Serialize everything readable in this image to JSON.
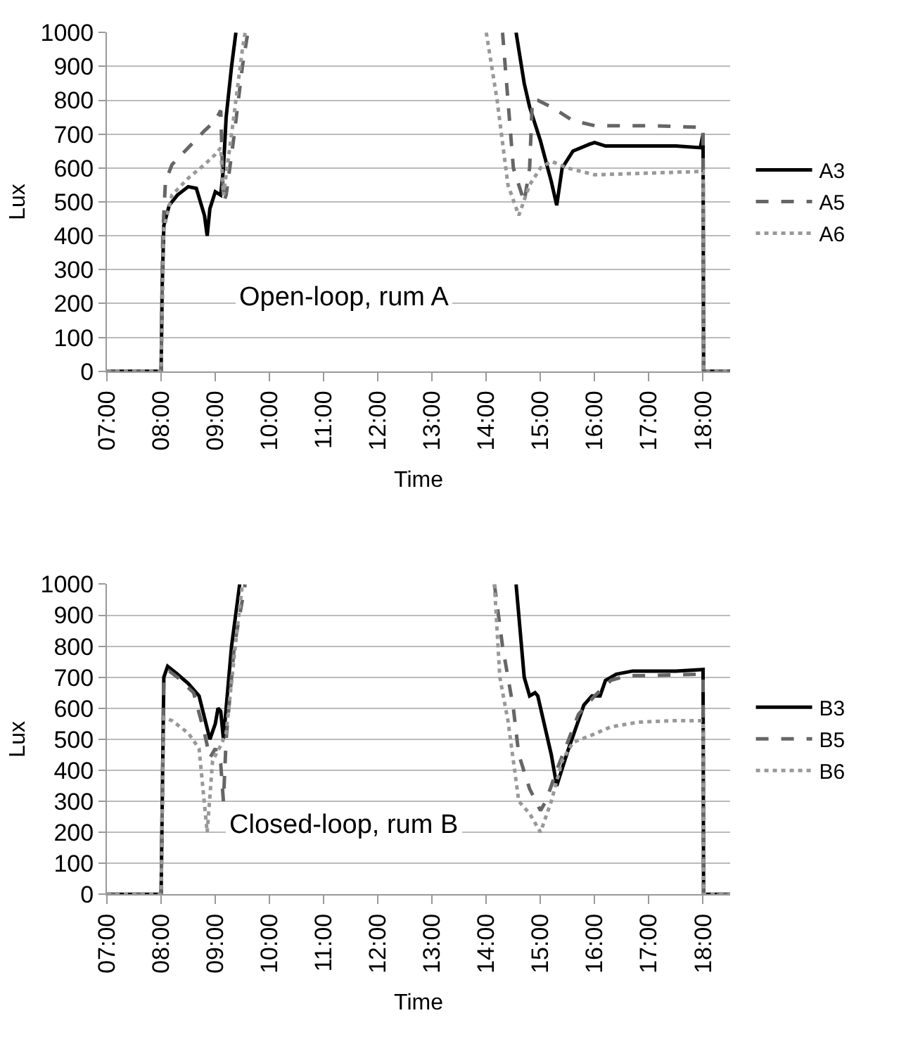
{
  "chart_data": [
    {
      "type": "line",
      "xlabel": "Time",
      "ylabel": "Lux",
      "annotations": [
        "Open-loop, rum A"
      ],
      "xlim": [
        7,
        18.5
      ],
      "ylim": [
        0,
        1000
      ],
      "xticks": [
        {
          "value": 7,
          "label": "07:00"
        },
        {
          "value": 8,
          "label": "08:00"
        },
        {
          "value": 9,
          "label": "09:00"
        },
        {
          "value": 10,
          "label": "10:00"
        },
        {
          "value": 11,
          "label": "11:00"
        },
        {
          "value": 12,
          "label": "12:00"
        },
        {
          "value": 13,
          "label": "13:00"
        },
        {
          "value": 14,
          "label": "14:00"
        },
        {
          "value": 15,
          "label": "15:00"
        },
        {
          "value": 16,
          "label": "16:00"
        },
        {
          "value": 17,
          "label": "17:00"
        },
        {
          "value": 18,
          "label": "18:00"
        }
      ],
      "yticks": [
        0,
        100,
        200,
        300,
        400,
        500,
        600,
        700,
        800,
        900,
        1000
      ],
      "grid": "y",
      "legend": "right",
      "marker": "none",
      "series": [
        {
          "name": "A3",
          "color": "#000000",
          "line_style": "solid",
          "x": [
            7,
            8,
            8.02,
            8.05,
            8.15,
            8.3,
            8.5,
            8.65,
            8.8,
            8.85,
            8.9,
            9.0,
            9.1,
            9.15,
            9.2,
            9.3,
            9.38,
            12,
            14.55,
            14.7,
            14.8,
            15.0,
            15.2,
            15.3,
            15.4,
            15.6,
            15.9,
            16.0,
            16.2,
            17.0,
            17.5,
            17.95,
            18.0,
            18.01,
            18.5
          ],
          "values": [
            0,
            0,
            250,
            430,
            490,
            520,
            545,
            540,
            460,
            400,
            480,
            530,
            520,
            600,
            750,
            900,
            1000,
            null,
            1000,
            850,
            780,
            680,
            560,
            490,
            600,
            650,
            670,
            675,
            665,
            665,
            665,
            660,
            700,
            0,
            0
          ]
        },
        {
          "name": "A5",
          "color": "#666666",
          "line_style": "dashed",
          "x": [
            7,
            8,
            8.03,
            8.08,
            8.2,
            8.5,
            8.8,
            9.0,
            9.1,
            9.15,
            9.2,
            9.35,
            9.5,
            9.6,
            12,
            14.3,
            14.4,
            14.5,
            14.7,
            14.8,
            14.85,
            14.95,
            15.2,
            15.6,
            16.0,
            17.0,
            18.0,
            18.01,
            18.5
          ],
          "values": [
            0,
            0,
            400,
            560,
            610,
            660,
            710,
            740,
            770,
            500,
            520,
            700,
            900,
            1000,
            null,
            1000,
            800,
            600,
            500,
            600,
            800,
            800,
            780,
            740,
            725,
            725,
            720,
            0,
            0
          ]
        },
        {
          "name": "A6",
          "color": "#999999",
          "line_style": "dotted",
          "x": [
            7,
            8,
            8.05,
            8.2,
            8.5,
            8.8,
            9.0,
            9.1,
            9.15,
            9.3,
            9.5,
            9.55,
            12,
            14.0,
            14.2,
            14.4,
            14.6,
            14.8,
            15.0,
            15.2,
            15.5,
            16,
            17,
            18,
            18.01,
            18.5
          ],
          "values": [
            0,
            0,
            420,
            520,
            570,
            610,
            640,
            660,
            520,
            700,
            950,
            1000,
            null,
            1000,
            800,
            550,
            460,
            550,
            600,
            620,
            600,
            580,
            585,
            590,
            0,
            0
          ]
        }
      ]
    },
    {
      "type": "line",
      "xlabel": "Time",
      "ylabel": "Lux",
      "annotations": [
        "Closed-loop, rum B"
      ],
      "xlim": [
        7,
        18.5
      ],
      "ylim": [
        0,
        1000
      ],
      "xticks": [
        {
          "value": 7,
          "label": "07:00"
        },
        {
          "value": 8,
          "label": "08:00"
        },
        {
          "value": 9,
          "label": "09:00"
        },
        {
          "value": 10,
          "label": "10:00"
        },
        {
          "value": 11,
          "label": "11:00"
        },
        {
          "value": 12,
          "label": "12:00"
        },
        {
          "value": 13,
          "label": "13:00"
        },
        {
          "value": 14,
          "label": "14:00"
        },
        {
          "value": 15,
          "label": "15:00"
        },
        {
          "value": 16,
          "label": "16:00"
        },
        {
          "value": 17,
          "label": "17:00"
        },
        {
          "value": 18,
          "label": "18:00"
        }
      ],
      "yticks": [
        0,
        100,
        200,
        300,
        400,
        500,
        600,
        700,
        800,
        900,
        1000
      ],
      "grid": "y",
      "legend": "right",
      "marker": "none",
      "series": [
        {
          "name": "B3",
          "color": "#000000",
          "line_style": "solid",
          "x": [
            7,
            8,
            8.05,
            8.12,
            8.3,
            8.5,
            8.7,
            8.9,
            9.0,
            9.05,
            9.1,
            9.15,
            9.3,
            9.45,
            12,
            14.55,
            14.6,
            14.7,
            14.8,
            14.9,
            14.95,
            15.2,
            15.3,
            15.5,
            15.8,
            15.95,
            16.1,
            16.2,
            16.4,
            16.7,
            17.5,
            18.0,
            18.01,
            18.5
          ],
          "values": [
            0,
            0,
            700,
            735,
            710,
            680,
            640,
            500,
            550,
            600,
            590,
            500,
            800,
            1000,
            null,
            1000,
            900,
            700,
            640,
            650,
            640,
            450,
            350,
            460,
            610,
            640,
            640,
            690,
            710,
            720,
            720,
            725,
            0,
            0
          ]
        },
        {
          "name": "B5",
          "color": "#666666",
          "line_style": "dashed",
          "x": [
            7,
            8,
            8.05,
            8.15,
            8.3,
            8.6,
            8.8,
            8.9,
            9.0,
            9.1,
            9.15,
            9.2,
            9.35,
            9.55,
            12,
            14.15,
            14.3,
            14.5,
            14.6,
            14.8,
            15.0,
            15.1,
            15.3,
            15.7,
            16.0,
            16.3,
            16.6,
            17,
            18,
            18.01,
            18.5
          ],
          "values": [
            0,
            0,
            690,
            720,
            700,
            650,
            520,
            440,
            470,
            420,
            300,
            500,
            800,
            1000,
            null,
            1000,
            800,
            600,
            450,
            340,
            270,
            300,
            400,
            580,
            640,
            690,
            705,
            705,
            710,
            0,
            0
          ]
        },
        {
          "name": "B6",
          "color": "#999999",
          "line_style": "dotted",
          "x": [
            7,
            8,
            8.05,
            8.2,
            8.5,
            8.7,
            8.85,
            8.95,
            9.1,
            9.2,
            9.4,
            9.5,
            12,
            14.15,
            14.25,
            14.4,
            14.6,
            14.8,
            15.0,
            15.2,
            15.4,
            15.6,
            15.9,
            16.3,
            16.8,
            17.5,
            17.9,
            18.0,
            18.01,
            18.5
          ],
          "values": [
            0,
            0,
            570,
            560,
            520,
            470,
            200,
            430,
            480,
            520,
            850,
            1000,
            null,
            1000,
            700,
            560,
            300,
            260,
            200,
            300,
            430,
            490,
            510,
            540,
            555,
            560,
            560,
            560,
            0,
            0
          ]
        }
      ]
    }
  ]
}
